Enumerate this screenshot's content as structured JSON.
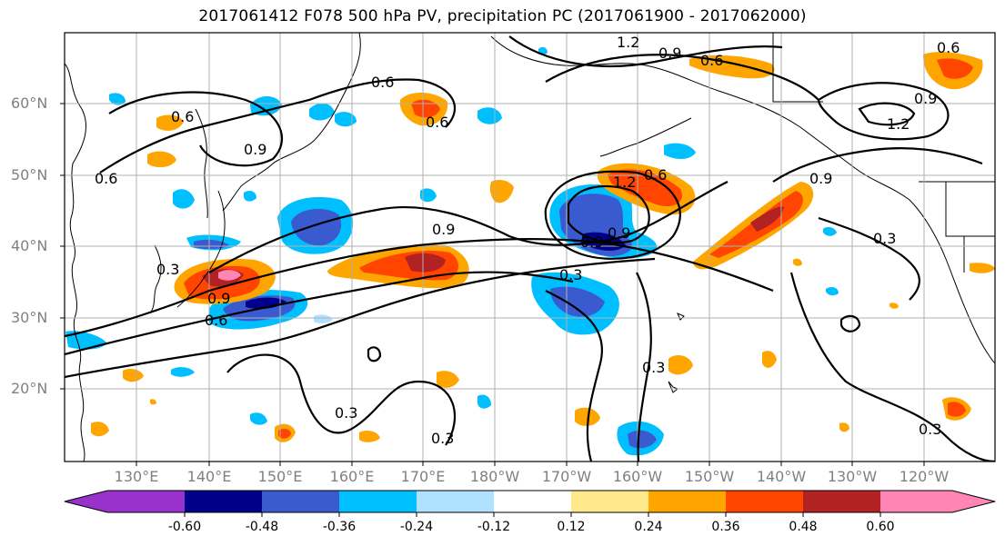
{
  "title": "2017061412 F078 500 hPa PV, precipitation PC (2017061900 - 2017062000)",
  "lat_labels": [
    "60°N",
    "50°N",
    "40°N",
    "30°N",
    "20°N"
  ],
  "lon_labels": [
    "130°E",
    "140°E",
    "150°E",
    "160°E",
    "170°E",
    "180°W",
    "170°W",
    "160°W",
    "150°W",
    "140°W",
    "130°W",
    "120°W"
  ],
  "contour_labels": [
    "0.6",
    "0.9",
    "0.6",
    "0.6",
    "0.9",
    "0.3",
    "0.6",
    "1.2",
    "0.9",
    "0.6",
    "1.2",
    "0.9",
    "0.6",
    "0.6",
    "1.2",
    "0.9",
    "0.9",
    "0.6",
    "0.3",
    "0.3",
    "0.3",
    "0.3",
    "0.3",
    "0.9",
    "0.9",
    "0.3"
  ],
  "colorbar": {
    "colors": [
      "#9932CC",
      "#00008B",
      "#3A5BCF",
      "#00BFFF",
      "#B0E2FF",
      "#FFFFFF",
      "#FFE88A",
      "#FFA500",
      "#FF4500",
      "#B22222",
      "#FF85B4"
    ],
    "tick_labels": [
      "-0.60",
      "-0.48",
      "-0.36",
      "-0.24",
      "-0.12",
      "0.12",
      "0.24",
      "0.36",
      "0.48",
      "0.60"
    ]
  }
}
